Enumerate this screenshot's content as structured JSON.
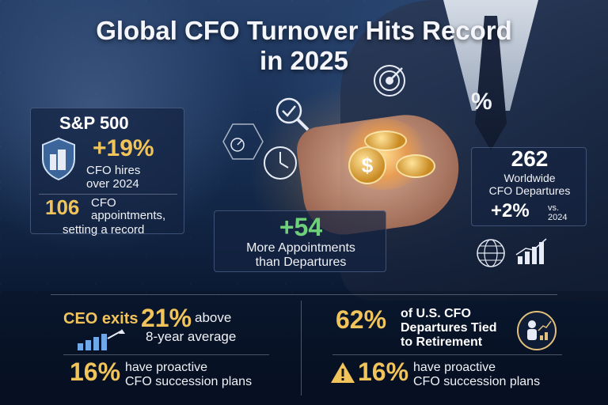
{
  "title_line1": "Global CFO Turnover Hits Record",
  "title_line2": "in 2025",
  "sp500": {
    "heading": "S&P 500",
    "hires_pct": "+19%",
    "hires_label_1": "CFO hires",
    "hires_label_2": "over 2024",
    "appointments_num": "106",
    "appointments_label_1": "CFO",
    "appointments_label_2": "appointments,",
    "appointments_label_3": "setting a record"
  },
  "center_stat": {
    "value": "+54",
    "label_1": "More Appointments",
    "label_2": "than Departures"
  },
  "worldwide": {
    "value": "262",
    "label_1": "Worldwide",
    "label_2": "CFO Departures",
    "change": "+2%",
    "change_label_1": "vs.",
    "change_label_2": "2024"
  },
  "ceo_exits": {
    "label": "CEO exits",
    "value": "21%",
    "desc_1": "above",
    "desc_2": "8-year average"
  },
  "succession_left": {
    "value": "16%",
    "desc_1": "have proactive",
    "desc_2": "CFO succession plans"
  },
  "retirement": {
    "value": "62%",
    "desc_1": "of U.S. CFO",
    "desc_2": "Departures Tied",
    "desc_3": "to Retirement"
  },
  "succession_right": {
    "value": "16%",
    "desc_1": "have proactive",
    "desc_2": "CFO succession plans"
  },
  "decor": {
    "percent_symbol": "%",
    "dollar_symbol": "$"
  },
  "colors": {
    "gold": "#f0c35b",
    "green": "#6fd07a",
    "background": "#0d1b33"
  }
}
